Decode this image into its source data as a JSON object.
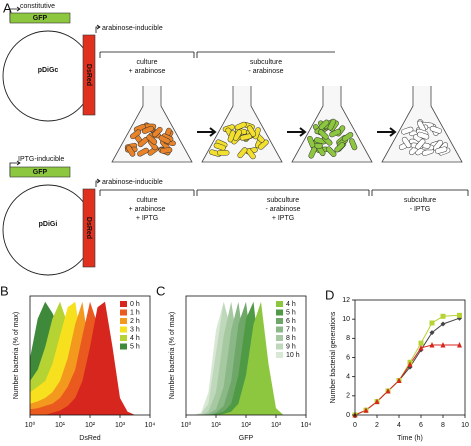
{
  "diagram": {
    "label": "A",
    "constructs": [
      {
        "promoter_gfp": "constitutive",
        "gfp": "GFP",
        "promoter_dsred": "arabinose-inducible",
        "dsred": "DsRed",
        "plasmid": "pDiGc",
        "steps": [
          {
            "title": "culture",
            "conditions": [
              "+ arabinose"
            ]
          },
          {
            "title": "subculture",
            "conditions": [
              "- arabinose"
            ]
          }
        ]
      },
      {
        "promoter_gfp": "IPTG-inducible",
        "gfp": "GFP",
        "promoter_dsred": "arabinose-inducible",
        "dsred": "DsRed",
        "plasmid": "pDiGi",
        "steps": [
          {
            "title": "culture",
            "conditions": [
              "+ arabinose",
              "+ IPTG"
            ]
          },
          {
            "title": "subculture",
            "conditions": [
              "- arabinose",
              "+ IPTG"
            ]
          },
          {
            "title": "subculture",
            "conditions": [
              "- IPTG"
            ]
          }
        ]
      }
    ]
  },
  "chart_data": [
    {
      "type": "area",
      "label": "B",
      "x_label": "DsRed",
      "y_label": "Number bacteria (% of max)",
      "log_x": true,
      "legend": "upper right",
      "x": [
        1,
        1.8,
        3.2,
        5.6,
        10,
        18,
        32,
        56,
        100,
        178,
        316,
        562,
        1000,
        1778,
        3162,
        5623,
        10000
      ],
      "xlim": [
        1,
        10000
      ],
      "xticks": [
        {
          "value": 1,
          "label": "10⁰"
        },
        {
          "value": 10,
          "label": "10¹"
        },
        {
          "value": 100,
          "label": "10²"
        },
        {
          "value": 1000,
          "label": "10³"
        },
        {
          "value": 10000,
          "label": "10⁴"
        }
      ],
      "ylim": [
        0,
        105
      ],
      "series": [
        {
          "name": "0 h",
          "color": "#d7261e",
          "values": [
            0,
            0,
            0,
            2,
            4,
            8,
            15,
            30,
            60,
            95,
            100,
            60,
            15,
            3,
            0,
            0,
            0
          ]
        },
        {
          "name": "1 h",
          "color": "#ea5a1f",
          "values": [
            5,
            6,
            8,
            10,
            15,
            25,
            40,
            70,
            100,
            80,
            25,
            5,
            1,
            0,
            0,
            0,
            0
          ]
        },
        {
          "name": "2 h",
          "color": "#f39a1e",
          "values": [
            10,
            12,
            15,
            20,
            30,
            50,
            80,
            100,
            55,
            15,
            3,
            0,
            0,
            0,
            0,
            0,
            0
          ]
        },
        {
          "name": "3 h",
          "color": "#f7e11e",
          "values": [
            20,
            25,
            30,
            45,
            70,
            95,
            100,
            60,
            20,
            5,
            1,
            0,
            0,
            0,
            0,
            0,
            0
          ]
        },
        {
          "name": "4 h",
          "color": "#b6d334",
          "values": [
            30,
            40,
            60,
            85,
            100,
            80,
            45,
            15,
            4,
            1,
            0,
            0,
            0,
            0,
            0,
            0,
            0
          ]
        },
        {
          "name": "5 h",
          "color": "#3f8a3a",
          "values": [
            50,
            85,
            100,
            90,
            75,
            55,
            35,
            18,
            7,
            2,
            0,
            0,
            0,
            0,
            0,
            0,
            0
          ]
        }
      ]
    },
    {
      "type": "area",
      "label": "C",
      "x_label": "GFP",
      "y_label": "Number bacteria (% of max)",
      "log_x": true,
      "legend": "upper right",
      "x": [
        1,
        1.8,
        3.2,
        5.6,
        10,
        18,
        32,
        56,
        100,
        178,
        316,
        562,
        1000,
        1778,
        3162,
        5623,
        10000
      ],
      "xlim": [
        1,
        10000
      ],
      "xticks": [
        {
          "value": 1,
          "label": "10⁰"
        },
        {
          "value": 10,
          "label": "10¹"
        },
        {
          "value": 100,
          "label": "10²"
        },
        {
          "value": 1000,
          "label": "10³"
        },
        {
          "value": 10000,
          "label": "10⁴"
        }
      ],
      "ylim": [
        0,
        105
      ],
      "series": [
        {
          "name": "4 h",
          "color": "#8dc63f",
          "values": [
            0,
            0,
            0,
            0,
            0,
            1,
            3,
            10,
            35,
            80,
            100,
            45,
            6,
            0,
            0,
            0,
            0
          ]
        },
        {
          "name": "5 h",
          "color": "#4f9a45",
          "values": [
            0,
            0,
            0,
            0,
            1,
            3,
            10,
            35,
            85,
            100,
            40,
            6,
            0,
            0,
            0,
            0,
            0
          ]
        },
        {
          "name": "6 h",
          "color": "#6ea768",
          "values": [
            0,
            0,
            0,
            0,
            2,
            8,
            30,
            80,
            100,
            45,
            8,
            0,
            0,
            0,
            0,
            0,
            0
          ]
        },
        {
          "name": "7 h",
          "color": "#8ab886",
          "values": [
            0,
            0,
            0,
            1,
            5,
            25,
            75,
            100,
            50,
            10,
            1,
            0,
            0,
            0,
            0,
            0,
            0
          ]
        },
        {
          "name": "8 h",
          "color": "#a6c9a2",
          "values": [
            0,
            0,
            0,
            3,
            20,
            70,
            100,
            60,
            15,
            2,
            0,
            0,
            0,
            0,
            0,
            0,
            0
          ]
        },
        {
          "name": "9 h",
          "color": "#bfd8bb",
          "values": [
            0,
            0,
            1,
            10,
            55,
            100,
            75,
            25,
            4,
            0,
            0,
            0,
            0,
            0,
            0,
            0,
            0
          ]
        },
        {
          "name": "10 h",
          "color": "#d8e8d4",
          "values": [
            0,
            0,
            2,
            20,
            75,
            100,
            60,
            15,
            2,
            0,
            0,
            0,
            0,
            0,
            0,
            0,
            0
          ]
        }
      ]
    },
    {
      "type": "line",
      "label": "D",
      "x_label": "Time (h)",
      "y_label": "Number bacterial generations",
      "x": [
        0,
        1,
        2,
        3,
        4,
        5,
        6,
        7,
        8,
        9.5
      ],
      "xlim": [
        0,
        10
      ],
      "xticks": [
        0,
        2,
        4,
        6,
        8,
        10
      ],
      "ylim": [
        0,
        12
      ],
      "yticks": [
        0,
        2,
        4,
        6,
        8,
        10,
        12
      ],
      "series": [
        {
          "color": "#444444",
          "marker": "diamond",
          "values": [
            0,
            0.5,
            1.4,
            2.5,
            3.6,
            5.0,
            6.8,
            8.6,
            9.5,
            10.1
          ]
        },
        {
          "color": "#b5d334",
          "marker": "square",
          "values": [
            0,
            0.5,
            1.4,
            2.5,
            3.6,
            5.5,
            7.5,
            9.6,
            10.3,
            10.4
          ]
        },
        {
          "color": "#d7261e",
          "marker": "triangle",
          "values": [
            0,
            0.5,
            1.4,
            2.5,
            3.6,
            5.3,
            7.0,
            7.3,
            7.3,
            7.3
          ]
        }
      ]
    }
  ]
}
